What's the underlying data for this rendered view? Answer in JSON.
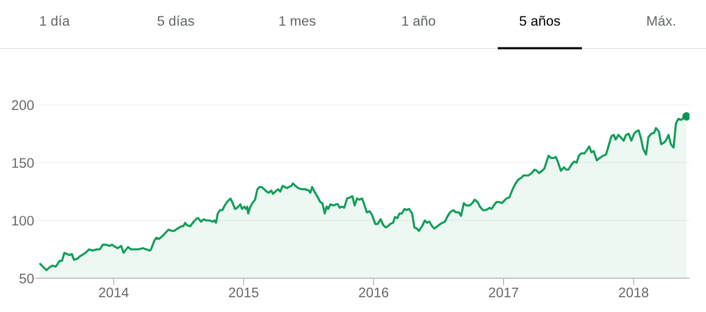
{
  "chart_data": {
    "type": "area",
    "annotations": [
      "1 día",
      "5 días",
      "1 mes",
      "1 año",
      "5 años",
      "Máx."
    ],
    "xlim": [
      2013.4,
      2018.43
    ],
    "xticks": [
      2014,
      2015,
      2016,
      2017,
      2018
    ],
    "ylim": [
      50,
      200
    ],
    "yticks": [
      50,
      100,
      150,
      200
    ],
    "grid": "y",
    "series": [
      {
        "color": "#0f9d58",
        "x": [
          2013.43,
          2013.483,
          2013.513,
          2013.531,
          2013.554,
          2013.584,
          2013.602,
          2013.621,
          2013.642,
          2013.66,
          2013.678,
          2013.695,
          2013.722,
          2013.74,
          2013.757,
          2013.784,
          2013.811,
          2013.837,
          2013.873,
          2013.894,
          2013.917,
          2013.943,
          2013.97,
          2013.987,
          2014.014,
          2014.032,
          2014.058,
          2014.076,
          2014.111,
          2014.133,
          2014.165,
          2014.191,
          2014.226,
          2014.253,
          2014.276,
          2014.288,
          2014.311,
          2014.327,
          2014.35,
          2014.38,
          2014.421,
          2014.447,
          2014.465,
          2014.492,
          2014.522,
          2014.536,
          2014.55,
          2014.563,
          2014.589,
          2014.616,
          2014.642,
          2014.651,
          2014.672,
          2014.692,
          2014.713,
          2014.739,
          2014.762,
          2014.775,
          2014.787,
          2014.801,
          2014.819,
          2014.837,
          2014.855,
          2014.872,
          2014.899,
          2014.916,
          2014.934,
          2014.952,
          2014.975,
          2014.987,
          2015.005,
          2015.017,
          2015.028,
          2015.035,
          2015.049,
          2015.067,
          2015.088,
          2015.106,
          2015.123,
          2015.137,
          2015.159,
          2015.176,
          2015.194,
          2015.212,
          2015.226,
          2015.244,
          2015.265,
          2015.282,
          2015.3,
          2015.314,
          2015.332,
          2015.35,
          2015.367,
          2015.38,
          2015.398,
          2015.42,
          2015.447,
          2015.473,
          2015.5,
          2015.513,
          2015.527,
          2015.545,
          2015.571,
          2015.589,
          2015.606,
          2015.624,
          2015.638,
          2015.651,
          2015.668,
          2015.689,
          2015.712,
          2015.725,
          2015.739,
          2015.757,
          2015.774,
          2015.796,
          2015.818,
          2015.837,
          2015.854,
          2015.872,
          2015.89,
          2015.912,
          2015.925,
          2015.948,
          2015.969,
          2015.987,
          2016.013,
          2016.031,
          2016.054,
          2016.075,
          2016.093,
          2016.11,
          2016.128,
          2016.15,
          2016.164,
          2016.182,
          2016.199,
          2016.217,
          2016.238,
          2016.252,
          2016.273,
          2016.296,
          2016.314,
          2016.332,
          2016.349,
          2016.373,
          2016.394,
          2016.411,
          2016.429,
          2016.45,
          2016.468,
          2016.491,
          2016.514,
          2016.532,
          2016.549,
          2016.571,
          2016.588,
          2016.615,
          2016.633,
          2016.656,
          2016.673,
          2016.694,
          2016.712,
          2016.739,
          2016.76,
          2016.778,
          2016.8,
          2016.818,
          2016.84,
          2016.862,
          2016.88,
          2016.893,
          2016.907,
          2016.925,
          2016.946,
          2016.969,
          2016.986,
          2017.004,
          2017.022,
          2017.045,
          2017.066,
          2017.087,
          2017.11,
          2017.137,
          2017.154,
          2017.169,
          2017.19,
          2017.217,
          2017.238,
          2017.256,
          2017.273,
          2017.296,
          2017.314,
          2017.331,
          2017.346,
          2017.367,
          2017.384,
          2017.402,
          2017.42,
          2017.441,
          2017.464,
          2017.482,
          2017.499,
          2017.526,
          2017.544,
          2017.562,
          2017.579,
          2017.597,
          2017.623,
          2017.641,
          2017.659,
          2017.676,
          2017.694,
          2017.717,
          2017.738,
          2017.765,
          2017.788,
          2017.809,
          2017.83,
          2017.848,
          2017.862,
          2017.883,
          2017.901,
          2017.924,
          2017.942,
          2017.963,
          2017.983,
          2018.004,
          2018.021,
          2018.039,
          2018.057,
          2018.074,
          2018.096,
          2018.114,
          2018.136,
          2018.159,
          2018.172,
          2018.195,
          2018.212,
          2018.23,
          2018.248,
          2018.269,
          2018.287,
          2018.308,
          2018.326,
          2018.345,
          2018.366,
          2018.386,
          2018.407
        ],
        "values": [
          63,
          57,
          60,
          61,
          60,
          65,
          65,
          72,
          71,
          70,
          71,
          66,
          67,
          69,
          70,
          72,
          75,
          74,
          75,
          75,
          79,
          79,
          78,
          79,
          77,
          76,
          78,
          72,
          77,
          75,
          75,
          75,
          76,
          75,
          74,
          75,
          82,
          85,
          84,
          87,
          92,
          91,
          91,
          93,
          95,
          95,
          98,
          96,
          95,
          99,
          102,
          102,
          99,
          101,
          100,
          100,
          99,
          100,
          98,
          106,
          109,
          109,
          113,
          116,
          119,
          115,
          110,
          111,
          114,
          110,
          112,
          110,
          112,
          106,
          111,
          115,
          118,
          127,
          129,
          129,
          127,
          125,
          124,
          126,
          123,
          125,
          127,
          125,
          130,
          129,
          128,
          129,
          130,
          132,
          130,
          128,
          127,
          127,
          126,
          124,
          129,
          125,
          120,
          116,
          115,
          106,
          112,
          110,
          114,
          113,
          114,
          114,
          111,
          112,
          111,
          119,
          120,
          121,
          113,
          119,
          118,
          119,
          115,
          107,
          108,
          105,
          97,
          97,
          101,
          96,
          94,
          95,
          97,
          98,
          103,
          102,
          106,
          106,
          110,
          109,
          110,
          106,
          94,
          93,
          91,
          95,
          100,
          98,
          99,
          95,
          93,
          95,
          97,
          98,
          99,
          104,
          107,
          109,
          107,
          107,
          104,
          115,
          113,
          113,
          115,
          118,
          116,
          112,
          109,
          109,
          110,
          111,
          110,
          113,
          116,
          116,
          115,
          117,
          119,
          120,
          126,
          131,
          135,
          137,
          139,
          139,
          139,
          141,
          144,
          143,
          141,
          143,
          145,
          151,
          156,
          154,
          154,
          155,
          150,
          143,
          146,
          144,
          144,
          149,
          151,
          150,
          156,
          158,
          158,
          161,
          164,
          159,
          160,
          152,
          154,
          156,
          157,
          165,
          173,
          174,
          170,
          174,
          172,
          169,
          174,
          175,
          169,
          175,
          177,
          178,
          171,
          162,
          157,
          172,
          175,
          176,
          180,
          177,
          166,
          167,
          169,
          174,
          166,
          163,
          184,
          188,
          187,
          189,
          190
        ]
      },
      {
        "type": "scatter",
        "color": "#0b9654",
        "x": [
          2018.407
        ],
        "values": [
          190
        ]
      }
    ]
  }
}
